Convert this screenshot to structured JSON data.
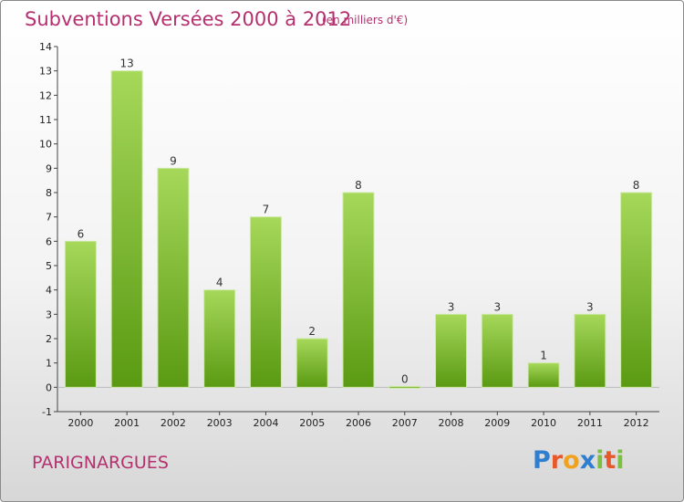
{
  "header": {
    "title": "Subventions Versées 2000 à 2012",
    "subtitle": "(en milliers d'€)"
  },
  "commune": "PARIGNARGUES",
  "logo": {
    "letters": [
      "P",
      "r",
      "o",
      "x",
      "i",
      "t",
      "i"
    ],
    "colors": [
      "#2f7fd0",
      "#e7582a",
      "#f0a21c",
      "#2f7fd0",
      "#7bc043",
      "#e7582a",
      "#7bc043"
    ]
  },
  "colors": {
    "bar_light": "#a6d85a",
    "bar_dark": "#5a9a12",
    "title": "#b5306e"
  },
  "chart_data": {
    "type": "bar",
    "categories": [
      "2000",
      "2001",
      "2002",
      "2003",
      "2004",
      "2005",
      "2006",
      "2007",
      "2008",
      "2009",
      "2010",
      "2011",
      "2012"
    ],
    "values": [
      6,
      13,
      9,
      4,
      7,
      2,
      8,
      0,
      3,
      3,
      1,
      3,
      8
    ],
    "value_labels": [
      "6",
      "13",
      "9",
      "4",
      "7",
      "2",
      "8",
      "0",
      "3",
      "3",
      "1",
      "3",
      "8"
    ],
    "ylim": [
      -1,
      14
    ],
    "yticks": [
      "-1",
      "0",
      "1",
      "2",
      "3",
      "4",
      "5",
      "6",
      "7",
      "8",
      "9",
      "10",
      "11",
      "12",
      "13",
      "14"
    ],
    "grid": false
  }
}
